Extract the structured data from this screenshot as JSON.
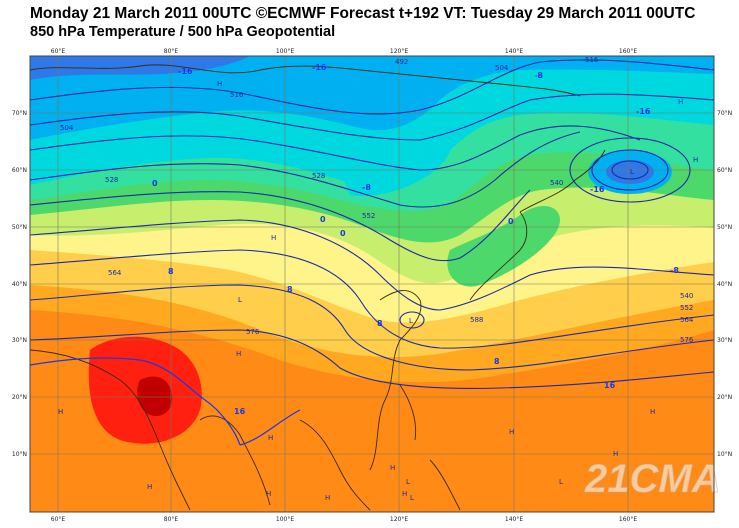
{
  "header": {
    "line1": "Monday 21 March 2011 00UTC ©ECMWF Forecast t+192 VT: Tuesday 29 March 2011 00UTC",
    "line2": "850 hPa Temperature / 500 hPa Geopotential"
  },
  "watermark": "21CMA",
  "axes": {
    "lon_top": [
      "60°E",
      "80°E",
      "100°E",
      "120°E",
      "140°E",
      "160°E"
    ],
    "lon_bottom": [
      "60°E",
      "80°E",
      "100°E",
      "120°E",
      "140°E",
      "160°E"
    ],
    "lat_left": [
      "70°N",
      "60°N",
      "50°N",
      "40°N",
      "30°N",
      "20°N",
      "10°N"
    ],
    "lat_right": [
      "70°N",
      "60°N",
      "50°N",
      "40°N",
      "30°N",
      "20°N",
      "10°N"
    ]
  },
  "colors": {
    "very_cold": "#2f78e8",
    "cold": "#00b0f0",
    "cool": "#00d8e0",
    "mild": "#33e0a0",
    "green": "#4cd86a",
    "yellow_green": "#c8ee6e",
    "yellow": "#fff48a",
    "light_orange": "#ffce4a",
    "orange": "#ffa820",
    "deep_orange": "#ff8a16",
    "red": "#ff2010",
    "dark_red": "#c00000",
    "contour": "#1a2aa8",
    "temp_line": "#1638e8"
  },
  "geopotential_labels": [
    "492",
    "504",
    "516",
    "528",
    "540",
    "552",
    "564",
    "576",
    "588",
    "516",
    "504",
    "528",
    "540",
    "552",
    "564",
    "576"
  ],
  "temperature_labels": [
    "-16",
    "-16",
    "-16",
    "-16",
    "-8",
    "-8",
    "-8",
    "0",
    "0",
    "0",
    "0",
    "8",
    "8",
    "8",
    "8",
    "16",
    "16"
  ],
  "pressure_centers": [
    "H",
    "H",
    "H",
    "H",
    "L",
    "L",
    "H",
    "H",
    "H",
    "H",
    "L",
    "H",
    "H",
    "L",
    "L",
    "H",
    "H",
    "H",
    "H",
    "H",
    "L"
  ]
}
